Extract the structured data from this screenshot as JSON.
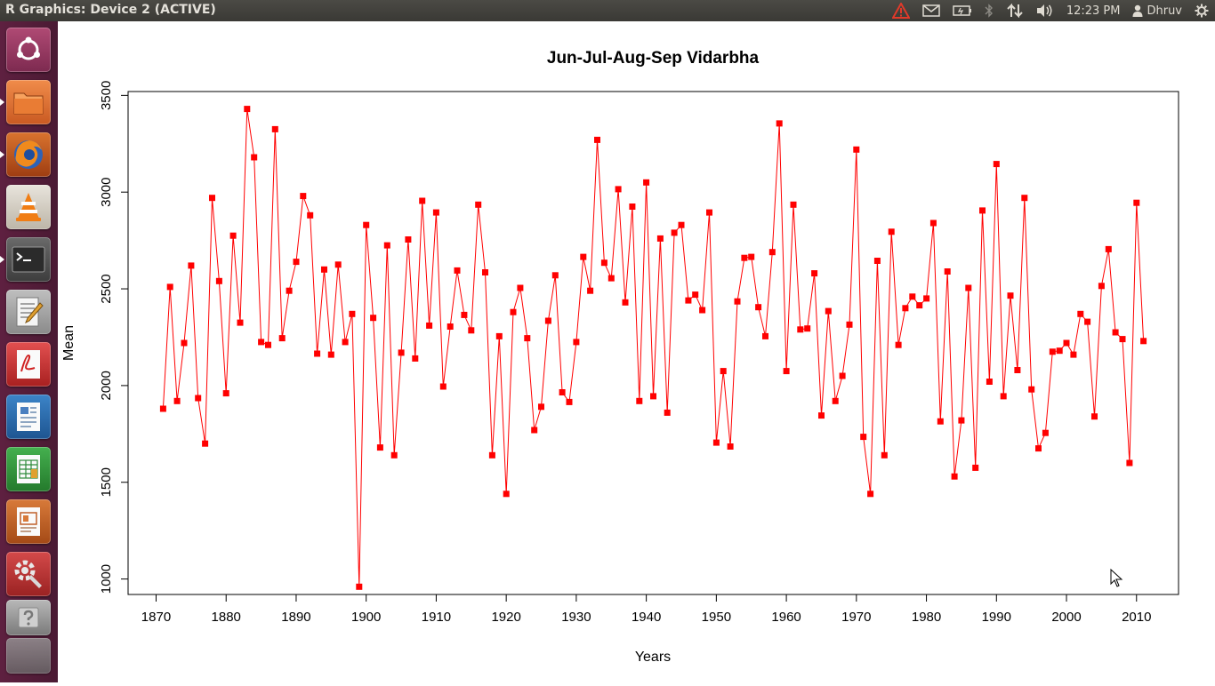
{
  "window": {
    "title": "R Graphics: Device 2 (ACTIVE)"
  },
  "panel": {
    "time": "12:23 PM",
    "user": "Dhruv"
  },
  "launcher": {
    "items": [
      {
        "name": "dash-icon",
        "color": "#9c3a62"
      },
      {
        "name": "files-icon",
        "color": "#e4743a"
      },
      {
        "name": "firefox-icon",
        "color": "#d85a1e"
      },
      {
        "name": "vlc-icon",
        "color": "#d8701e"
      },
      {
        "name": "terminal-icon",
        "color": "#2d2d2d"
      },
      {
        "name": "text-editor-icon",
        "color": "#8a8a8a"
      },
      {
        "name": "pdf-viewer-icon",
        "color": "#c92b2b"
      },
      {
        "name": "writer-icon",
        "color": "#2a6fb0"
      },
      {
        "name": "calc-icon",
        "color": "#2d9a3b"
      },
      {
        "name": "impress-icon",
        "color": "#c6612a"
      },
      {
        "name": "settings-icon",
        "color": "#b73232"
      },
      {
        "name": "help-icon",
        "color": "#9a9a9a"
      }
    ]
  },
  "chart_data": {
    "type": "line",
    "title": "Jun-Jul-Aug-Sep Vidarbha",
    "xlabel": "Years",
    "ylabel": "Mean",
    "xlim": [
      1866,
      2016
    ],
    "ylim": [
      920,
      3520
    ],
    "xticks": [
      1870,
      1880,
      1890,
      1900,
      1910,
      1920,
      1930,
      1940,
      1950,
      1960,
      1970,
      1980,
      1990,
      2000,
      2010
    ],
    "yticks": [
      1000,
      1500,
      2000,
      2500,
      3000,
      3500
    ],
    "color": "#ff0000",
    "x": [
      1871,
      1872,
      1873,
      1874,
      1875,
      1876,
      1877,
      1878,
      1879,
      1880,
      1881,
      1882,
      1883,
      1884,
      1885,
      1886,
      1887,
      1888,
      1889,
      1890,
      1891,
      1892,
      1893,
      1894,
      1895,
      1896,
      1897,
      1898,
      1899,
      1900,
      1901,
      1902,
      1903,
      1904,
      1905,
      1906,
      1907,
      1908,
      1909,
      1910,
      1911,
      1912,
      1913,
      1914,
      1915,
      1916,
      1917,
      1918,
      1919,
      1920,
      1921,
      1922,
      1923,
      1924,
      1925,
      1926,
      1927,
      1928,
      1929,
      1930,
      1931,
      1932,
      1933,
      1934,
      1935,
      1936,
      1937,
      1938,
      1939,
      1940,
      1941,
      1942,
      1943,
      1944,
      1945,
      1946,
      1947,
      1948,
      1949,
      1950,
      1951,
      1952,
      1953,
      1954,
      1955,
      1956,
      1957,
      1958,
      1959,
      1960,
      1961,
      1962,
      1963,
      1964,
      1965,
      1966,
      1967,
      1968,
      1969,
      1970,
      1971,
      1972,
      1973,
      1974,
      1975,
      1976,
      1977,
      1978,
      1979,
      1980,
      1981,
      1982,
      1983,
      1984,
      1985,
      1986,
      1987,
      1988,
      1989,
      1990,
      1991,
      1992,
      1993,
      1994,
      1995,
      1996,
      1997,
      1998,
      1999,
      2000,
      2001,
      2002,
      2003,
      2004,
      2005,
      2006,
      2007,
      2008,
      2009,
      2010,
      2011
    ],
    "y": [
      1880,
      2510,
      1920,
      2220,
      2620,
      1935,
      1700,
      2970,
      2540,
      1960,
      2775,
      2325,
      3430,
      3180,
      2225,
      2210,
      3325,
      2245,
      2490,
      2640,
      2980,
      2880,
      2165,
      2600,
      2160,
      2625,
      2225,
      2370,
      960,
      2830,
      2350,
      1680,
      2725,
      1640,
      2170,
      2755,
      2140,
      2955,
      2310,
      2895,
      1995,
      2305,
      2595,
      2365,
      2285,
      2935,
      2585,
      1640,
      2255,
      1440,
      2380,
      2505,
      2245,
      1770,
      1890,
      2335,
      2570,
      1965,
      1915,
      2225,
      2665,
      2490,
      3270,
      2635,
      2555,
      3015,
      2430,
      2925,
      1920,
      3050,
      1945,
      2760,
      1860,
      2790,
      2830,
      2440,
      2470,
      2390,
      2895,
      1705,
      2075,
      1685,
      2435,
      2660,
      2665,
      2405,
      2255,
      2690,
      3355,
      2075,
      2935,
      2290,
      2295,
      2580,
      1845,
      2385,
      1920,
      2050,
      2315,
      3220,
      1735,
      1440,
      2645,
      1640,
      2795,
      2210,
      2400,
      2460,
      2415,
      2450,
      2840,
      1815,
      2590,
      1530,
      1820,
      2505,
      1575,
      2905,
      2020,
      3145,
      1945,
      2465,
      2080,
      2970,
      1980,
      1675,
      1755,
      2175,
      2180,
      2220,
      2160,
      2370,
      2330,
      1840,
      2515,
      2705,
      2275,
      2240,
      1600,
      2945,
      2230
    ]
  }
}
